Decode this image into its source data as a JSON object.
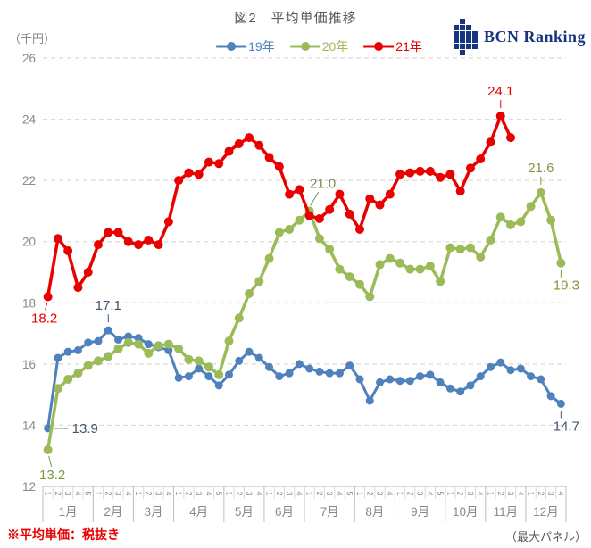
{
  "header": {
    "title": "図2　平均単価推移",
    "unit_label": "（千円）"
  },
  "logo": {
    "text": "BCN Ranking",
    "color": "#16357f",
    "grid": [
      ".X..",
      "XXX.",
      "XXXX",
      "XXXX",
      "XXXX",
      ".X.."
    ]
  },
  "footnotes": {
    "left": "※平均単価：税抜き",
    "right": "（最大パネル）"
  },
  "chart_data": {
    "type": "line",
    "title": "図2　平均単価推移",
    "ylabel": "（千円）",
    "y_axis": {
      "min": 12,
      "max": 26,
      "step": 2
    },
    "grid": "horizontal-dashed",
    "legend_position": "top-center",
    "x_axis": {
      "months": [
        "1月",
        "2月",
        "3月",
        "4月",
        "5月",
        "6月",
        "7月",
        "8月",
        "9月",
        "10月",
        "11月",
        "12月"
      ],
      "weeks_per_month": [
        5,
        4,
        4,
        5,
        4,
        4,
        5,
        4,
        5,
        4,
        4,
        4
      ]
    },
    "series": [
      {
        "name": "19年",
        "color": "#4f81bd",
        "line_width": 3,
        "marker_r": 4.5,
        "values": [
          13.9,
          16.2,
          16.4,
          16.45,
          16.7,
          16.75,
          17.1,
          16.8,
          16.9,
          16.85,
          16.65,
          16.55,
          16.45,
          15.55,
          15.6,
          15.85,
          15.6,
          15.3,
          15.65,
          16.1,
          16.4,
          16.2,
          15.9,
          15.6,
          15.7,
          16.0,
          15.85,
          15.75,
          15.7,
          15.7,
          15.95,
          15.5,
          14.8,
          15.4,
          15.5,
          15.45,
          15.45,
          15.6,
          15.65,
          15.4,
          15.2,
          15.1,
          15.3,
          15.6,
          15.9,
          16.05,
          15.8,
          15.85,
          15.6,
          15.5,
          14.95,
          14.7
        ]
      },
      {
        "name": "20年",
        "color": "#9bbb59",
        "line_width": 3.5,
        "marker_r": 5,
        "values": [
          13.2,
          15.2,
          15.5,
          15.7,
          15.95,
          16.1,
          16.25,
          16.5,
          16.7,
          16.65,
          16.35,
          16.6,
          16.65,
          16.5,
          16.15,
          16.1,
          15.9,
          15.65,
          16.75,
          17.5,
          18.3,
          18.7,
          19.45,
          20.3,
          20.4,
          20.7,
          21.0,
          20.1,
          19.75,
          19.1,
          18.85,
          18.6,
          18.2,
          19.25,
          19.45,
          19.3,
          19.1,
          19.1,
          19.2,
          18.7,
          19.8,
          19.75,
          19.8,
          19.5,
          20.05,
          20.8,
          20.55,
          20.65,
          21.15,
          21.6,
          20.7,
          19.3
        ]
      },
      {
        "name": "21年",
        "color": "#e90000",
        "line_width": 3.5,
        "marker_r": 5,
        "values": [
          18.2,
          20.1,
          19.7,
          18.5,
          19.0,
          19.9,
          20.3,
          20.3,
          20.0,
          19.9,
          20.05,
          19.9,
          20.65,
          22.0,
          22.25,
          22.2,
          22.6,
          22.55,
          22.95,
          23.2,
          23.4,
          23.15,
          22.75,
          22.45,
          21.55,
          21.7,
          20.85,
          20.75,
          21.05,
          21.55,
          20.9,
          20.4,
          21.4,
          21.2,
          21.55,
          22.2,
          22.25,
          22.3,
          22.3,
          22.1,
          22.2,
          21.65,
          22.4,
          22.7,
          23.25,
          24.1,
          23.4
        ]
      }
    ],
    "annotations": [
      {
        "series_index": 2,
        "point_index": 0,
        "text": "18.2",
        "color": "#e90000",
        "placement": "below-left"
      },
      {
        "series_index": 0,
        "point_index": 0,
        "text": "13.9",
        "color": "#44546a",
        "placement": "right"
      },
      {
        "series_index": 1,
        "point_index": 0,
        "text": "13.2",
        "color": "#7e993c",
        "placement": "below-start"
      },
      {
        "series_index": 0,
        "point_index": 6,
        "text": "17.1",
        "color": "#44546a",
        "placement": "above"
      },
      {
        "series_index": 1,
        "point_index": 26,
        "text": "21.0",
        "color": "#7c8a55",
        "placement": "above-right"
      },
      {
        "series_index": 2,
        "point_index": 45,
        "text": "24.1",
        "color": "#e90000",
        "placement": "above"
      },
      {
        "series_index": 1,
        "point_index": 49,
        "text": "21.6",
        "color": "#7e993c",
        "placement": "above"
      },
      {
        "series_index": 1,
        "point_index": 51,
        "text": "19.3",
        "color": "#7e993c",
        "placement": "below"
      },
      {
        "series_index": 0,
        "point_index": 51,
        "text": "14.7",
        "color": "#44546a",
        "placement": "below"
      }
    ],
    "colors": {
      "gridline": "#d9d9d9",
      "axis": "#bfbfbf",
      "tick_label": "#898989",
      "title": "#595959"
    }
  }
}
